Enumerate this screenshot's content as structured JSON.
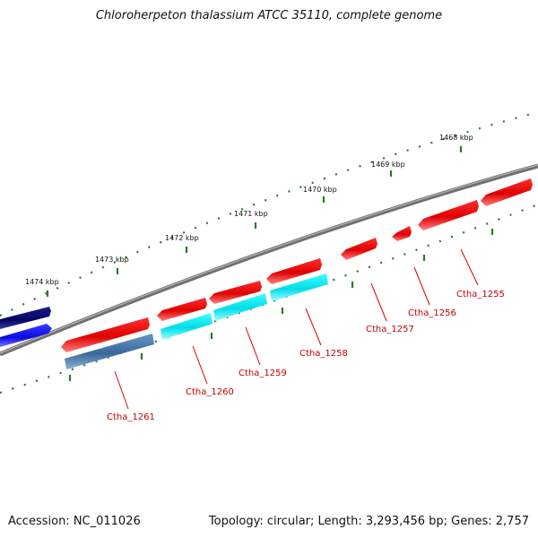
{
  "title": "Chloroherpeton thalassium ATCC 35110, complete genome",
  "footer": {
    "accession": "Accession: NC_011026",
    "summary": "Topology: circular; Length: 3,293,456 bp; Genes: 2,757"
  },
  "scale_labels": [
    "1474 kbp",
    "1473 kbp",
    "1472 kbp",
    "1471 kbp",
    "1470 kbp",
    "1469 kbp",
    "1468 kbp"
  ],
  "genes": [
    {
      "name": "Ctha_1261",
      "color": "red",
      "strand": "reverse"
    },
    {
      "name": "Ctha_1260",
      "color": "red",
      "strand": "reverse"
    },
    {
      "name": "Ctha_1259",
      "color": "red",
      "strand": "reverse"
    },
    {
      "name": "Ctha_1258",
      "color": "red",
      "strand": "reverse"
    },
    {
      "name": "Ctha_1257",
      "color": "red",
      "strand": "reverse"
    },
    {
      "name": "Ctha_1256",
      "color": "red",
      "strand": "reverse"
    },
    {
      "name": "Ctha_1255",
      "color": "red",
      "strand": "reverse"
    }
  ],
  "colors": {
    "backbone": "#808080",
    "tick": "#2a7a2a",
    "cds": "#e00000",
    "feature_cyan": "#00e5ee",
    "feature_steel": "#4a78a8",
    "feature_navy": "#0a0a70",
    "feature_blue": "#1010ee",
    "label": "#c00000"
  }
}
